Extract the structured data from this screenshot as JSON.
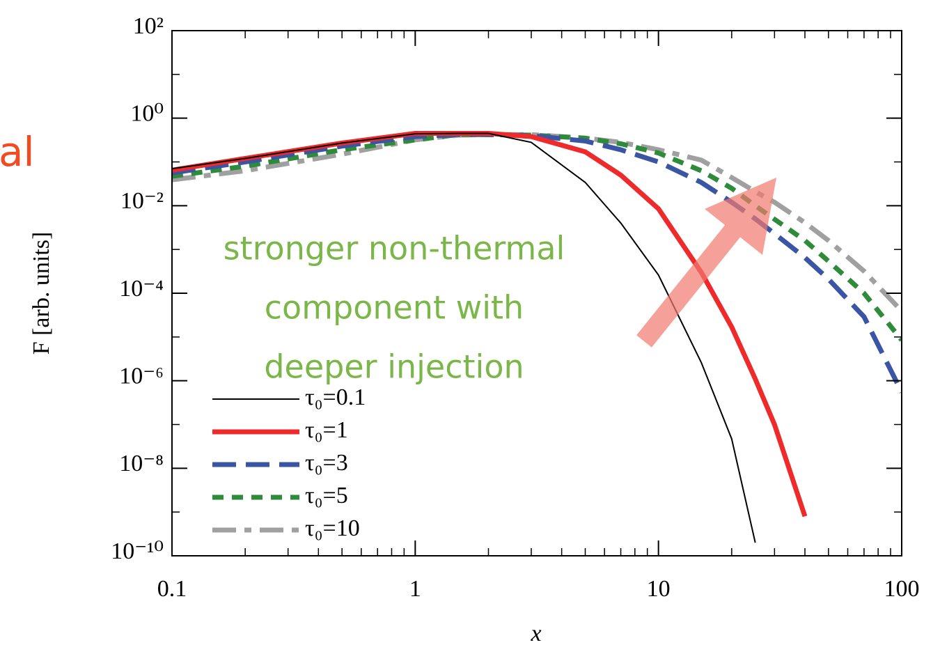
{
  "chart_data": {
    "type": "line",
    "side_text": "al",
    "annotation": [
      "stronger non-thermal",
      "component with",
      "deeper injection"
    ],
    "xlabel": "x",
    "ylabel": "F [arb. units]",
    "log_x": true,
    "log_y": true,
    "xlim": [
      0.1,
      100
    ],
    "ylim": [
      1e-10,
      100
    ],
    "xticks": [
      0.1,
      1,
      10,
      100
    ],
    "yticks": [
      {
        "value": 1e-10,
        "label": "10⁻¹⁰"
      },
      {
        "value": 1e-08,
        "label": "10⁻⁸"
      },
      {
        "value": 1e-06,
        "label": "10⁻⁶"
      },
      {
        "value": 0.0001,
        "label": "10⁻⁴"
      },
      {
        "value": 0.01,
        "label": "10⁻²"
      },
      {
        "value": 1,
        "label": "10⁰"
      },
      {
        "value": 100,
        "label": "10²"
      }
    ],
    "minor_ticks": true,
    "legend": "lower left",
    "x": [
      0.1,
      0.2,
      0.5,
      1,
      1.5,
      2,
      3,
      5,
      7,
      10,
      15,
      20,
      25,
      30,
      40,
      50,
      70,
      100
    ],
    "series": [
      {
        "name": "τ₀=0.1",
        "color": "#000000",
        "linestyle": "solid",
        "weight": "thin",
        "values": [
          0.07,
          0.12,
          0.27,
          0.44,
          0.45,
          0.45,
          0.28,
          0.034,
          0.004,
          0.00026,
          2.6e-06,
          4.7e-08,
          2e-10,
          null,
          null,
          null,
          null,
          null
        ]
      },
      {
        "name": "τ₀=1",
        "color": "#ee2a2a",
        "linestyle": "solid",
        "weight": "thick",
        "values": [
          0.065,
          0.12,
          0.27,
          0.45,
          0.45,
          0.45,
          0.38,
          0.17,
          0.05,
          0.0085,
          0.0003,
          1.7e-05,
          1.1e-06,
          1e-07,
          8e-10,
          null,
          null,
          null
        ]
      },
      {
        "name": "τ₀=3",
        "color": "#3b55a5",
        "linestyle": "dashed",
        "weight": "thick",
        "values": [
          0.056,
          0.1,
          0.23,
          0.38,
          0.42,
          0.42,
          0.4,
          0.3,
          0.19,
          0.1,
          0.034,
          0.012,
          0.005,
          0.0023,
          0.00065,
          0.00021,
          2.9e-05,
          5.5e-07
        ]
      },
      {
        "name": "τ₀=5",
        "color": "#2e8b3a",
        "linestyle": "dotted",
        "weight": "thick",
        "values": [
          0.047,
          0.08,
          0.19,
          0.32,
          0.42,
          0.42,
          0.41,
          0.35,
          0.26,
          0.16,
          0.063,
          0.025,
          0.01,
          0.0049,
          0.0016,
          0.00054,
          0.0001,
          8.5e-06
        ]
      },
      {
        "name": "τ₀=10",
        "color": "#a0a0a0",
        "linestyle": "dashdot",
        "weight": "thick",
        "values": [
          0.039,
          0.063,
          0.15,
          0.32,
          0.41,
          0.42,
          0.42,
          0.35,
          0.28,
          0.19,
          0.11,
          0.044,
          0.021,
          0.012,
          0.0041,
          0.0016,
          0.00032,
          3.9e-05
        ]
      }
    ]
  }
}
